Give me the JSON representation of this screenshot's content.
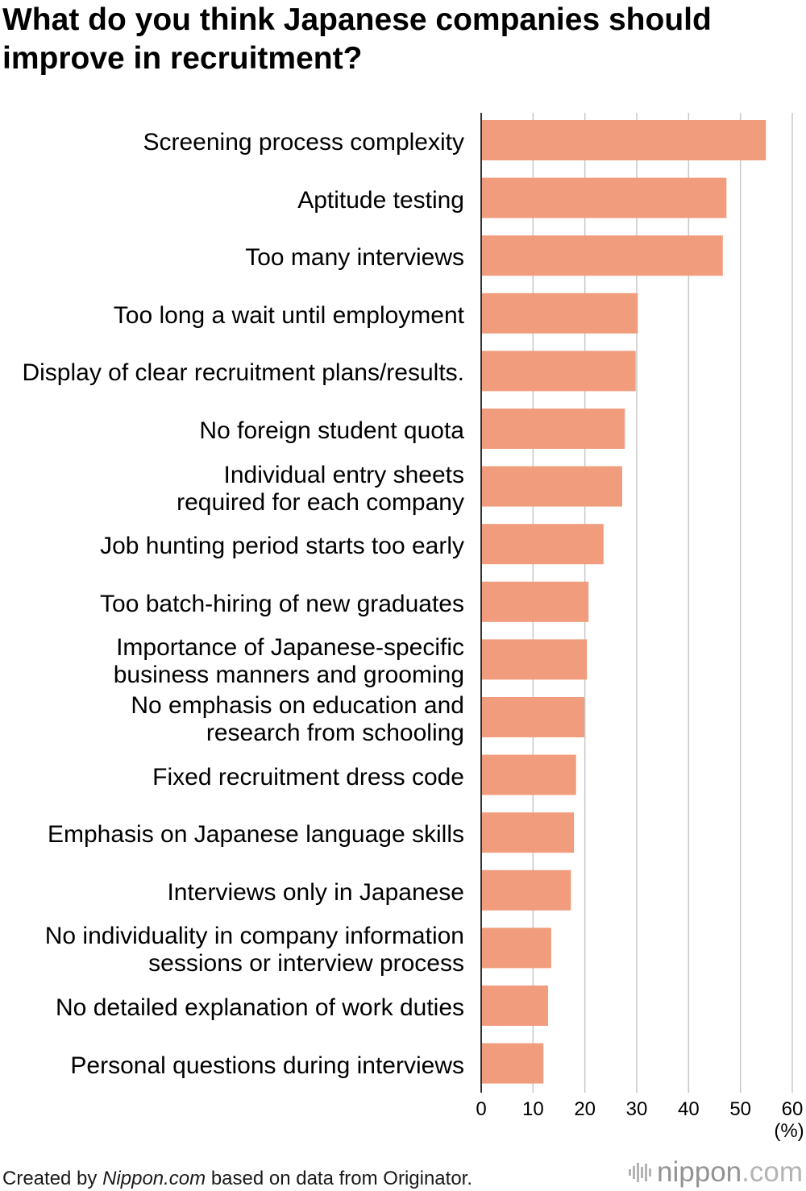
{
  "chart_data": {
    "type": "bar",
    "orientation": "horizontal",
    "title": "What do you think Japanese companies should improve in recruitment?",
    "categories": [
      "Screening process complexity",
      "Aptitude testing",
      "Too many interviews",
      "Too long a wait until employment",
      "Display of clear recruitment plans/results.",
      "No foreign student quota",
      "Individual entry sheets\nrequired for each company",
      "Job hunting period starts too early",
      "Too batch-hiring of new graduates",
      "Importance of Japanese-specific\nbusiness manners and grooming",
      "No emphasis on education and\nresearch from schooling",
      "Fixed recruitment dress code",
      "Emphasis on Japanese language skills",
      "Interviews only in Japanese",
      "No individuality in company information\nsessions or interview process",
      "No detailed explanation of work duties",
      "Personal questions during interviews"
    ],
    "values": [
      54.9,
      47.3,
      46.6,
      30.2,
      29.8,
      27.7,
      27.2,
      23.6,
      20.7,
      20.4,
      19.9,
      18.3,
      17.9,
      17.3,
      13.5,
      12.9,
      12.0
    ],
    "xlabel": "(%)",
    "xlim": [
      0,
      60
    ],
    "xticks": [
      0,
      10,
      20,
      30,
      40,
      50,
      60
    ],
    "grid": "vertical",
    "bar_color": "#F19C7C",
    "grid_color": "#C8C8C8",
    "axis_color": "#333333"
  },
  "footer": {
    "prefix": "Created by",
    "source": "Nippon.com",
    "suffix": "based on data from Originator."
  },
  "logo": {
    "name": "nippon",
    "tld": ".com",
    "icon": "sound-wave-icon"
  }
}
